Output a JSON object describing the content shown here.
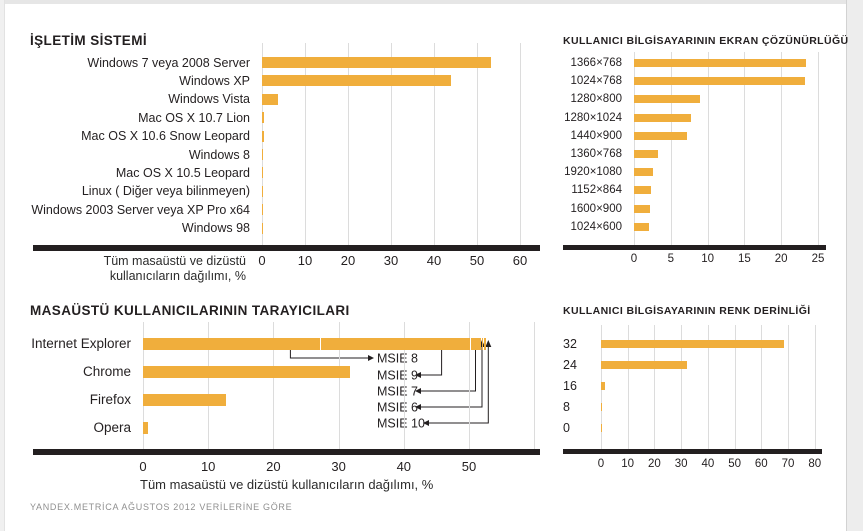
{
  "page": {
    "accent_color": "#F0AE3C",
    "axis_color": "#231F20",
    "footer": "YANDEX.METRİCA AĞUSTOS 2012 VERİLERİNE GÖRE"
  },
  "chart_data": [
    {
      "id": "os",
      "type": "bar",
      "orientation": "horizontal",
      "title": "İŞLETİM SİSTEMİ",
      "categories": [
        "Windows 7 veya 2008 Server",
        "Windows XP",
        "Windows Vista",
        "Mac OS X 10.7 Lion",
        "Mac OS X 10.6 Snow Leopard",
        "Windows 8",
        "Mac OS X 10.5 Leopard",
        "Linux ( Diğer veya bilinmeyen)",
        "Windows 2003 Server veya XP Pro x64",
        "Windows 98"
      ],
      "values": [
        53.3,
        44,
        3.7,
        0.4,
        0.4,
        0.3,
        0.3,
        0.3,
        0.15,
        0.15
      ],
      "xlabel_lines": [
        "Tüm masaüstü ve dizüstü",
        "kullanıcıların dağılımı, %"
      ],
      "xlim": [
        0,
        60
      ],
      "ticks": [
        0,
        10,
        20,
        30,
        40,
        50,
        60
      ],
      "grid": true
    },
    {
      "id": "resolution",
      "type": "bar",
      "orientation": "horizontal",
      "title": "KULLANICI BİLGİSAYARININ EKRAN ÇÖZÜNÜRLÜĞÜ",
      "categories": [
        "1366×768",
        "1024×768",
        "1280×800",
        "1280×1024",
        "1440×900",
        "1360×768",
        "1920×1080",
        "1152×864",
        "1600×900",
        "1024×600"
      ],
      "values": [
        23.4,
        23.2,
        8.9,
        7.8,
        7.2,
        3.3,
        2.6,
        2.3,
        2.1,
        2.0
      ],
      "xlim": [
        0,
        25
      ],
      "ticks": [
        0,
        5,
        10,
        15,
        20,
        25
      ],
      "grid": true
    },
    {
      "id": "browsers",
      "type": "bar",
      "orientation": "horizontal",
      "title": "MASAÜSTÜ KULLANICILARININ TARAYICILARI",
      "categories": [
        "Internet Explorer",
        "Chrome",
        "Firefox",
        "Opera"
      ],
      "values": [
        52.6,
        31.8,
        12.7,
        0.8
      ],
      "stacked": {
        "category": "Internet Explorer",
        "segments": [
          {
            "label": "MSIE 8",
            "from": 0,
            "to": 27.1
          },
          {
            "label": "MSIE 9",
            "from": 27.1,
            "to": 50.1
          },
          {
            "label": "MSIE 7",
            "from": 50.1,
            "to": 51.8
          },
          {
            "label": "MSIE 6",
            "from": 51.8,
            "to": 52.2
          },
          {
            "label": "MSIE 10",
            "from": 52.2,
            "to": 52.6
          }
        ]
      },
      "annotations": [
        "MSIE 8",
        "MSIE 9",
        "MSIE 7",
        "MSIE 6",
        "MSIE 10"
      ],
      "annotation_targets": [
        22.6,
        45.8,
        51.0,
        52.0,
        52.5
      ],
      "xlabel": "Tüm masaüstü ve dizüstü kullanıcıların dağılımı, %",
      "xlim": [
        0,
        50
      ],
      "ticks": [
        0,
        10,
        20,
        30,
        40,
        50
      ],
      "grid": true
    },
    {
      "id": "color_depth",
      "type": "bar",
      "orientation": "horizontal",
      "title": "KULLANICI BİLGİSAYARININ RENK DERİNLİĞİ",
      "categories": [
        "32",
        "24",
        "16",
        "8",
        "0"
      ],
      "values": [
        68.5,
        32,
        1.5,
        0.4,
        0.4
      ],
      "xlim": [
        0,
        80
      ],
      "ticks": [
        0,
        10,
        20,
        30,
        40,
        50,
        60,
        70,
        80
      ],
      "grid": true
    }
  ]
}
